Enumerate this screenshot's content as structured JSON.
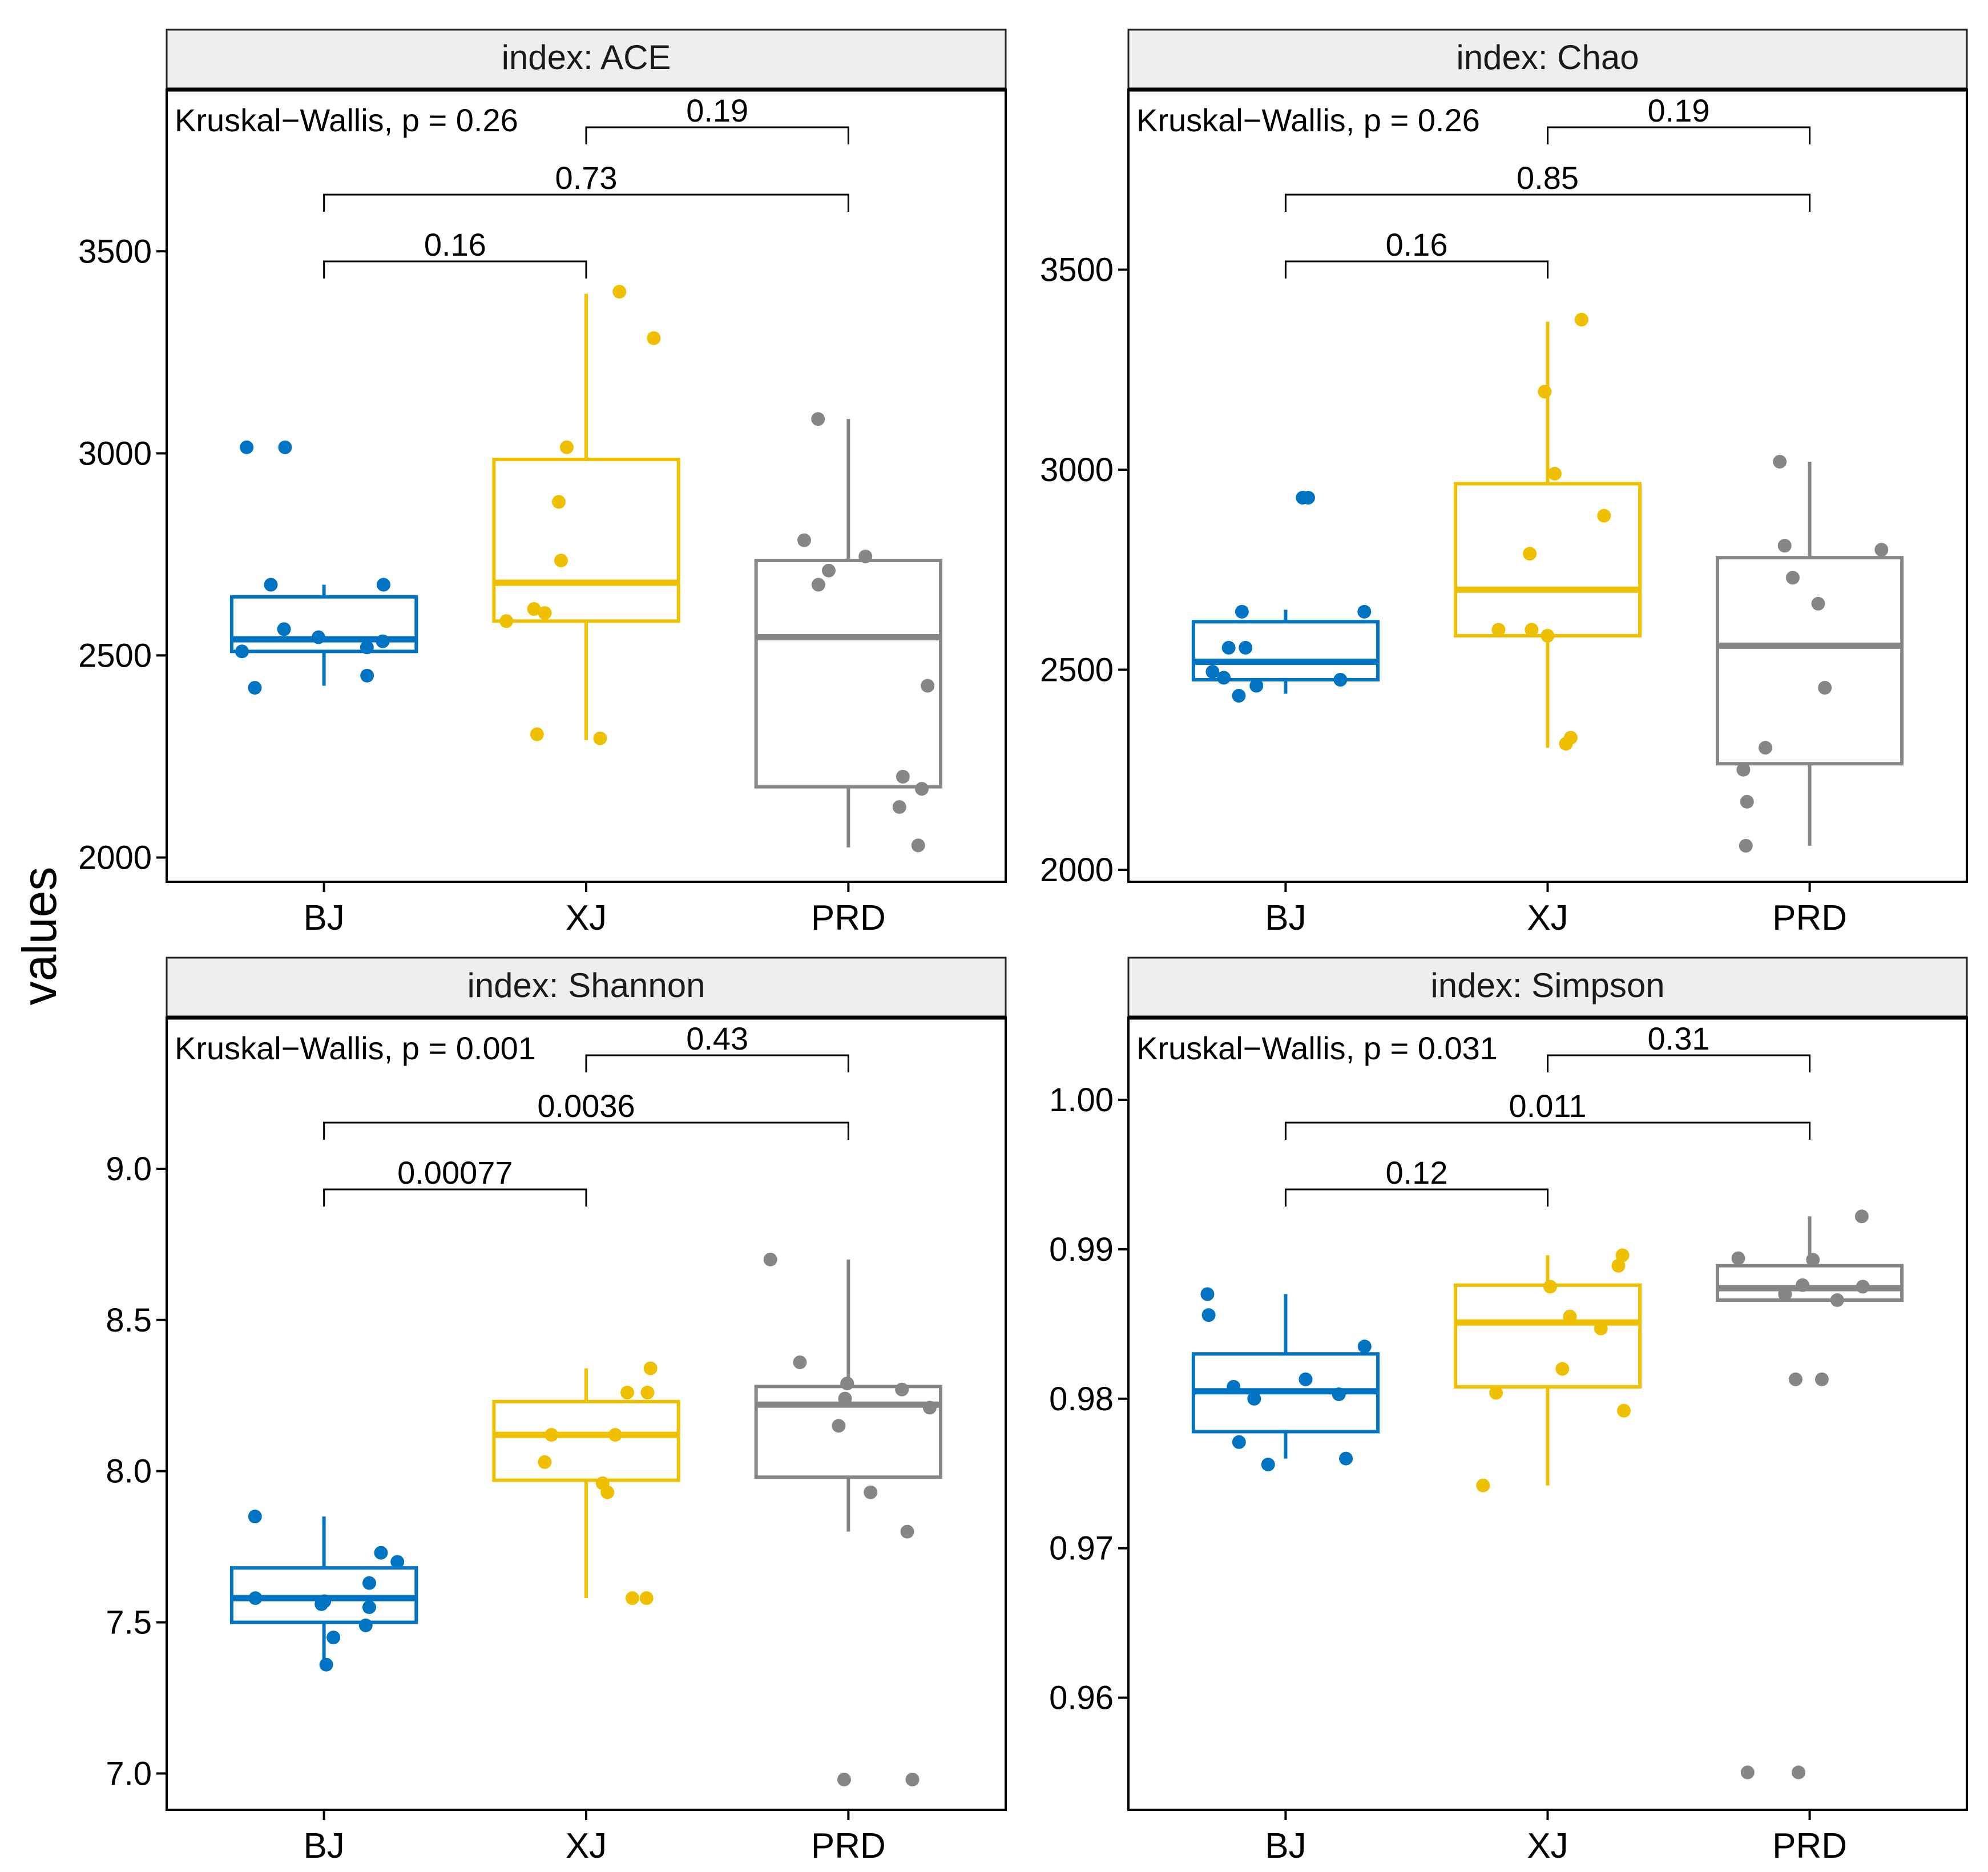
{
  "y_axis_label": "values",
  "colors": {
    "BJ": "#0073C2",
    "XJ": "#EFC000",
    "PRD": "#868686"
  },
  "chart_data": [
    {
      "type": "box",
      "title": "index: ACE",
      "kruskal_label": "Kruskal−Wallis, p = 0.26",
      "categories": [
        "BJ",
        "XJ",
        "PRD"
      ],
      "ylim": [
        1940,
        3900
      ],
      "yticks": [
        2000,
        2500,
        3000,
        3500
      ],
      "tick_labels": [
        "2000",
        "2500",
        "3000",
        "3500"
      ],
      "boxes": [
        {
          "group": "BJ",
          "q1": 2510,
          "median": 2540,
          "q3": 2645,
          "whisker_low": 2425,
          "whisker_high": 2675
        },
        {
          "group": "XJ",
          "q1": 2585,
          "median": 2680,
          "q3": 2985,
          "whisker_low": 2290,
          "whisker_high": 3395
        },
        {
          "group": "PRD",
          "q1": 2175,
          "median": 2545,
          "q3": 2735,
          "whisker_low": 2025,
          "whisker_high": 3085
        }
      ],
      "points": [
        {
          "group": "BJ",
          "y": [
            3015,
            3015,
            2675,
            2675,
            2565,
            2545,
            2535,
            2520,
            2510,
            2450,
            2420
          ]
        },
        {
          "group": "XJ",
          "y": [
            3400,
            3285,
            3015,
            2880,
            2735,
            2615,
            2605,
            2585,
            2305,
            2295
          ]
        },
        {
          "group": "PRD",
          "y": [
            3085,
            2785,
            2745,
            2710,
            2675,
            2425,
            2200,
            2170,
            2125,
            2030
          ]
        }
      ],
      "comparisons": [
        {
          "groups": [
            "BJ",
            "XJ"
          ],
          "p_label": "0.16"
        },
        {
          "groups": [
            "BJ",
            "PRD"
          ],
          "p_label": "0.73"
        },
        {
          "groups": [
            "XJ",
            "PRD"
          ],
          "p_label": "0.19"
        }
      ]
    },
    {
      "type": "box",
      "title": "index: Chao",
      "kruskal_label": "Kruskal−Wallis, p = 0.26",
      "categories": [
        "BJ",
        "XJ",
        "PRD"
      ],
      "ylim": [
        1970,
        3950
      ],
      "yticks": [
        2000,
        2500,
        3000,
        3500
      ],
      "tick_labels": [
        "2000",
        "2500",
        "3000",
        "3500"
      ],
      "boxes": [
        {
          "group": "BJ",
          "q1": 2475,
          "median": 2520,
          "q3": 2620,
          "whisker_low": 2440,
          "whisker_high": 2650
        },
        {
          "group": "XJ",
          "q1": 2585,
          "median": 2700,
          "q3": 2965,
          "whisker_low": 2305,
          "whisker_high": 3370
        },
        {
          "group": "PRD",
          "q1": 2265,
          "median": 2560,
          "q3": 2780,
          "whisker_low": 2060,
          "whisker_high": 3020
        }
      ],
      "points": [
        {
          "group": "BJ",
          "y": [
            2930,
            2930,
            2645,
            2645,
            2555,
            2555,
            2495,
            2480,
            2475,
            2460,
            2435
          ]
        },
        {
          "group": "XJ",
          "y": [
            3375,
            3195,
            2990,
            2885,
            2790,
            2600,
            2600,
            2585,
            2330,
            2315
          ]
        },
        {
          "group": "PRD",
          "y": [
            3020,
            2810,
            2800,
            2730,
            2665,
            2455,
            2305,
            2250,
            2170,
            2060
          ]
        }
      ],
      "comparisons": [
        {
          "groups": [
            "BJ",
            "XJ"
          ],
          "p_label": "0.16"
        },
        {
          "groups": [
            "BJ",
            "PRD"
          ],
          "p_label": "0.85"
        },
        {
          "groups": [
            "XJ",
            "PRD"
          ],
          "p_label": "0.19"
        }
      ]
    },
    {
      "type": "box",
      "title": "index: Shannon",
      "kruskal_label": "Kruskal−Wallis, p = 0.001",
      "categories": [
        "BJ",
        "XJ",
        "PRD"
      ],
      "ylim": [
        6.88,
        9.5
      ],
      "yticks": [
        7.0,
        7.5,
        8.0,
        8.5,
        9.0
      ],
      "tick_labels": [
        "7.0",
        "7.5",
        "8.0",
        "8.5",
        "9.0"
      ],
      "boxes": [
        {
          "group": "BJ",
          "q1": 7.5,
          "median": 7.58,
          "q3": 7.68,
          "whisker_low": 7.37,
          "whisker_high": 7.85
        },
        {
          "group": "XJ",
          "q1": 7.97,
          "median": 8.12,
          "q3": 8.23,
          "whisker_low": 7.58,
          "whisker_high": 8.34
        },
        {
          "group": "PRD",
          "q1": 7.98,
          "median": 8.22,
          "q3": 8.28,
          "whisker_low": 7.8,
          "whisker_high": 8.7
        }
      ],
      "points": [
        {
          "group": "BJ",
          "y": [
            7.85,
            7.73,
            7.7,
            7.63,
            7.58,
            7.57,
            7.56,
            7.55,
            7.49,
            7.45,
            7.36
          ]
        },
        {
          "group": "XJ",
          "y": [
            8.34,
            8.26,
            8.26,
            8.12,
            8.12,
            8.03,
            7.96,
            7.93,
            7.58,
            7.58
          ]
        },
        {
          "group": "PRD",
          "y": [
            8.7,
            8.36,
            8.29,
            8.27,
            8.24,
            8.21,
            8.15,
            7.93,
            7.8,
            6.98,
            6.98
          ]
        }
      ],
      "comparisons": [
        {
          "groups": [
            "BJ",
            "XJ"
          ],
          "p_label": "0.00077"
        },
        {
          "groups": [
            "BJ",
            "PRD"
          ],
          "p_label": "0.0036"
        },
        {
          "groups": [
            "XJ",
            "PRD"
          ],
          "p_label": "0.43"
        }
      ]
    },
    {
      "type": "box",
      "title": "index: Simpson",
      "kruskal_label": "Kruskal−Wallis, p = 0.031",
      "categories": [
        "BJ",
        "XJ",
        "PRD"
      ],
      "ylim": [
        0.9525,
        1.0055
      ],
      "yticks": [
        0.96,
        0.97,
        0.98,
        0.99,
        1.0
      ],
      "tick_labels": [
        "0.96",
        "0.97",
        "0.98",
        "0.99",
        "1.00"
      ],
      "boxes": [
        {
          "group": "BJ",
          "q1": 0.9778,
          "median": 0.9805,
          "q3": 0.983,
          "whisker_low": 0.976,
          "whisker_high": 0.987
        },
        {
          "group": "XJ",
          "q1": 0.9808,
          "median": 0.9851,
          "q3": 0.9876,
          "whisker_low": 0.9742,
          "whisker_high": 0.9896
        },
        {
          "group": "PRD",
          "q1": 0.9866,
          "median": 0.9874,
          "q3": 0.9889,
          "whisker_low": 0.9866,
          "whisker_high": 0.9922
        }
      ],
      "points": [
        {
          "group": "BJ",
          "y": [
            0.987,
            0.9856,
            0.9835,
            0.9813,
            0.9808,
            0.9803,
            0.98,
            0.9771,
            0.976,
            0.9756
          ]
        },
        {
          "group": "XJ",
          "y": [
            0.9896,
            0.9889,
            0.9875,
            0.9855,
            0.9847,
            0.982,
            0.9804,
            0.9792,
            0.9742
          ]
        },
        {
          "group": "PRD",
          "y": [
            0.9922,
            0.9894,
            0.9893,
            0.9876,
            0.9875,
            0.987,
            0.9866,
            0.9813,
            0.9813,
            0.955,
            0.955
          ]
        }
      ],
      "comparisons": [
        {
          "groups": [
            "BJ",
            "XJ"
          ],
          "p_label": "0.12"
        },
        {
          "groups": [
            "BJ",
            "PRD"
          ],
          "p_label": "0.011"
        },
        {
          "groups": [
            "XJ",
            "PRD"
          ],
          "p_label": "0.31"
        }
      ]
    }
  ]
}
